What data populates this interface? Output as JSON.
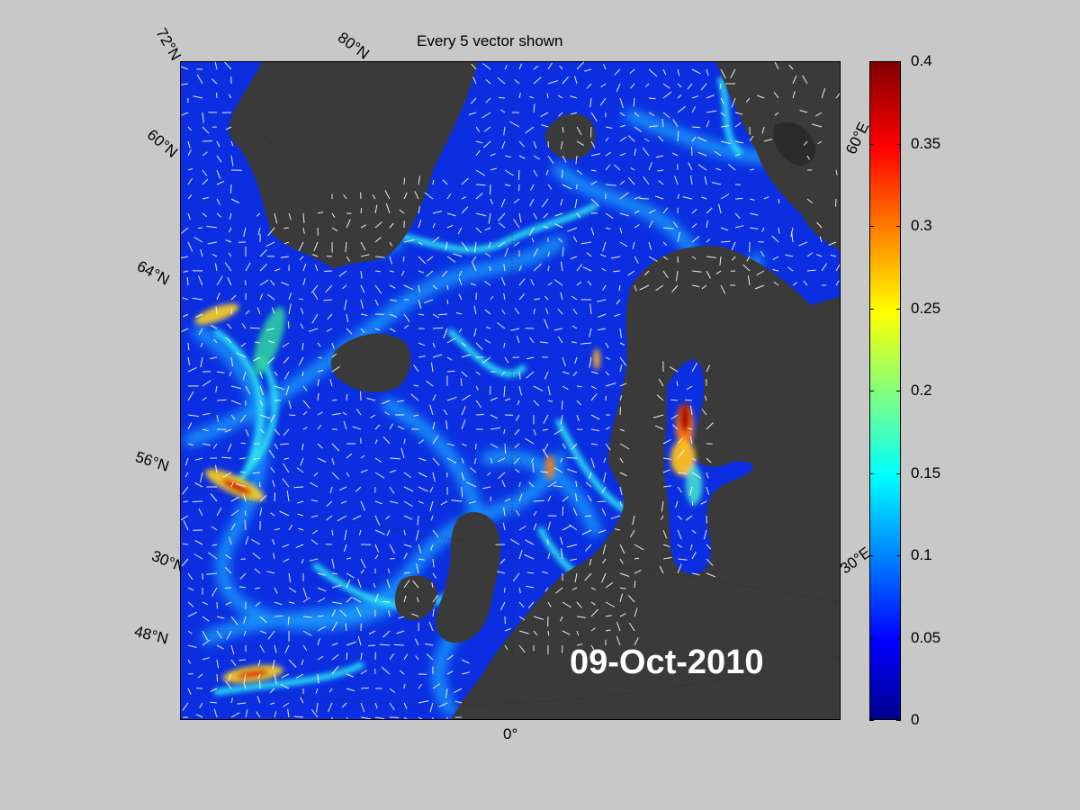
{
  "figure": {
    "title": "Every 5 vector shown",
    "date_stamp": "09-Oct-2010"
  },
  "map": {
    "ocean_speed_color": "#0b2fe0",
    "land_color": "#3a3a3a",
    "arrow_color": "#ffffff",
    "grid_labels": {
      "lat_72": "72°N",
      "lat_80": "80°N",
      "lat_60": "60°N",
      "lat_64": "64°N",
      "lat_56": "56°N",
      "lat_30": "30°N",
      "lat_48": "48°N",
      "lon_0": "0°",
      "lon_30e": "30°E",
      "lon_60e": "60°E"
    }
  },
  "colorbar": {
    "colormap": "jet",
    "min": 0,
    "max": 0.4,
    "ticks": [
      "0",
      "0.05",
      "0.1",
      "0.15",
      "0.2",
      "0.25",
      "0.3",
      "0.35",
      "0.4"
    ]
  }
}
